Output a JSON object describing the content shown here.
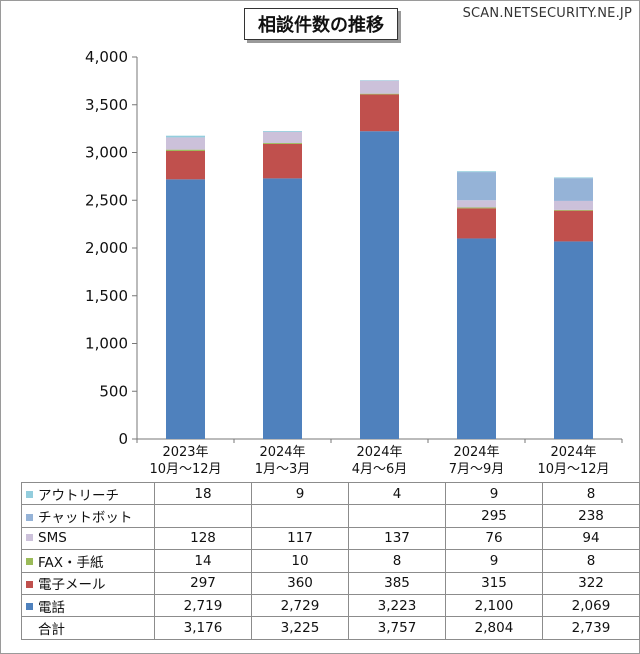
{
  "title": "相談件数の推移",
  "source": "SCAN.NETSECURITY.NE.JP",
  "chart_data": {
    "type": "bar",
    "stacked": true,
    "categories": [
      [
        "2023年",
        "10月～12月"
      ],
      [
        "2024年",
        "1月～3月"
      ],
      [
        "2024年",
        "4月～6月"
      ],
      [
        "2024年",
        "7月～9月"
      ],
      [
        "2024年",
        "10月～12月"
      ]
    ],
    "ylim": [
      0,
      4000
    ],
    "yticks": [
      "0",
      "500",
      "1,000",
      "1,500",
      "2,000",
      "2,500",
      "3,000",
      "3,500",
      "4,000"
    ],
    "ytick_values": [
      0,
      500,
      1000,
      1500,
      2000,
      2500,
      3000,
      3500,
      4000
    ],
    "grid": false,
    "series": [
      {
        "name": "電話",
        "color": "#4f81bd",
        "values": [
          2719,
          2729,
          3223,
          2100,
          2069
        ]
      },
      {
        "name": "電子メール",
        "color": "#c0504d",
        "values": [
          297,
          360,
          385,
          315,
          322
        ]
      },
      {
        "name": "FAX・手紙",
        "color": "#9bbb59",
        "values": [
          14,
          10,
          8,
          9,
          8
        ]
      },
      {
        "name": "SMS",
        "color": "#ccc1da",
        "values": [
          128,
          117,
          137,
          76,
          94
        ]
      },
      {
        "name": "チャットボット",
        "color": "#95b3d7",
        "values": [
          null,
          null,
          null,
          295,
          238
        ]
      },
      {
        "name": "アウトリーチ",
        "color": "#93cddd",
        "values": [
          18,
          9,
          4,
          9,
          8
        ]
      }
    ],
    "total_label": "合計",
    "totals": [
      3176,
      3225,
      3757,
      2804,
      2739
    ]
  },
  "table": {
    "rows": [
      {
        "label": "アウトリーチ",
        "color": "#93cddd",
        "cells": [
          "18",
          "9",
          "4",
          "9",
          "8"
        ]
      },
      {
        "label": "チャットボット",
        "color": "#95b3d7",
        "cells": [
          "",
          "",
          "",
          "295",
          "238"
        ]
      },
      {
        "label": "SMS",
        "color": "#ccc1da",
        "cells": [
          "128",
          "117",
          "137",
          "76",
          "94"
        ]
      },
      {
        "label": "FAX・手紙",
        "color": "#9bbb59",
        "cells": [
          "14",
          "10",
          "8",
          "9",
          "8"
        ]
      },
      {
        "label": "電子メール",
        "color": "#c0504d",
        "cells": [
          "297",
          "360",
          "385",
          "315",
          "322"
        ]
      },
      {
        "label": "電話",
        "color": "#4f81bd",
        "cells": [
          "2,719",
          "2,729",
          "3,223",
          "2,100",
          "2,069"
        ]
      },
      {
        "label": "合計",
        "color": "",
        "cells": [
          "3,176",
          "3,225",
          "3,757",
          "2,804",
          "2,739"
        ]
      }
    ]
  }
}
